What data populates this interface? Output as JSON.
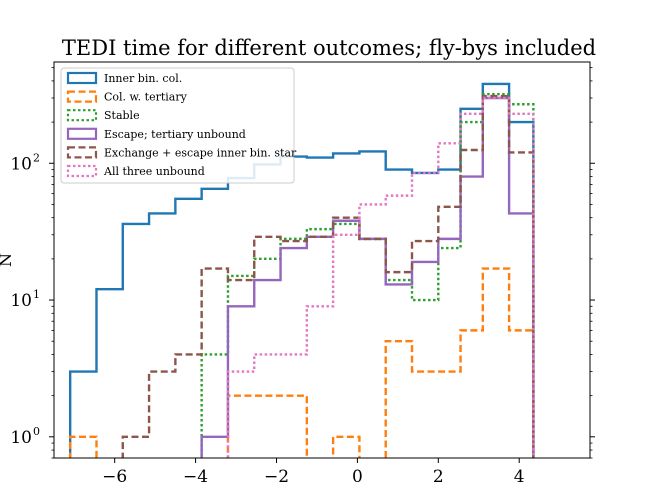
{
  "chart_data": {
    "type": "histogram",
    "title": "TEDI time for different outcomes; fly-bys included",
    "xlabel": "",
    "ylabel": "N",
    "yscale": "log",
    "xlim": [
      -7.5,
      5.75
    ],
    "ylim": [
      0.7,
      550
    ],
    "xticks": [
      {
        "value": -6,
        "label": "−6"
      },
      {
        "value": -4,
        "label": "−4"
      },
      {
        "value": -2,
        "label": "−2"
      },
      {
        "value": 0,
        "label": "0"
      },
      {
        "value": 2,
        "label": "2"
      },
      {
        "value": 4,
        "label": "4"
      }
    ],
    "yticks": [
      {
        "value": 1,
        "base": "10",
        "exp": "0"
      },
      {
        "value": 10,
        "base": "10",
        "exp": "1"
      },
      {
        "value": 100,
        "base": "10",
        "exp": "2"
      }
    ],
    "legend_position": "upper-left",
    "bin_edges": [
      -7.1,
      -6.45,
      -5.8,
      -5.15,
      -4.5,
      -3.85,
      -3.2,
      -2.55,
      -1.9,
      -1.25,
      -0.6,
      0.05,
      0.7,
      1.35,
      2.0,
      2.55,
      3.1,
      3.75,
      4.35
    ],
    "series": [
      {
        "name": "Inner bin. col.",
        "color": "#1f77b4",
        "dash": "solid",
        "values": [
          3,
          12,
          36,
          43,
          55,
          65,
          78,
          98,
          112,
          110,
          118,
          122,
          90,
          85,
          90,
          250,
          380,
          200
        ]
      },
      {
        "name": "Col. w. tertiary",
        "color": "#ff7f0e",
        "dash": "dashed",
        "values": [
          1,
          0,
          0,
          0,
          0,
          0,
          2,
          2,
          2,
          0,
          1,
          0,
          5,
          3,
          3,
          6,
          17,
          6
        ]
      },
      {
        "name": "Stable",
        "color": "#2ca02c",
        "dash": "dotted",
        "values": [
          0,
          0,
          0,
          0,
          0,
          4,
          15,
          20,
          28,
          33,
          36,
          28,
          14,
          10,
          24,
          200,
          320,
          270
        ]
      },
      {
        "name": "Escape; tertiary unbound",
        "color": "#9467bd",
        "dash": "solid",
        "values": [
          0,
          0,
          0,
          0,
          0,
          1,
          9,
          14,
          24,
          29,
          38,
          28,
          13,
          19,
          28,
          80,
          300,
          43
        ]
      },
      {
        "name": "Exchange + escape inner bin. star",
        "color": "#8c564b",
        "dash": "dashed",
        "values": [
          0,
          0,
          1,
          3,
          4,
          17,
          14,
          29,
          27,
          29,
          40,
          28,
          16,
          27,
          48,
          125,
          310,
          120
        ]
      },
      {
        "name": "All three unbound",
        "color": "#e377c2",
        "dash": "dotted",
        "values": [
          0,
          0,
          0,
          0,
          0,
          0,
          3,
          4,
          4,
          9,
          30,
          50,
          58,
          85,
          140,
          230,
          300,
          230
        ]
      }
    ]
  }
}
